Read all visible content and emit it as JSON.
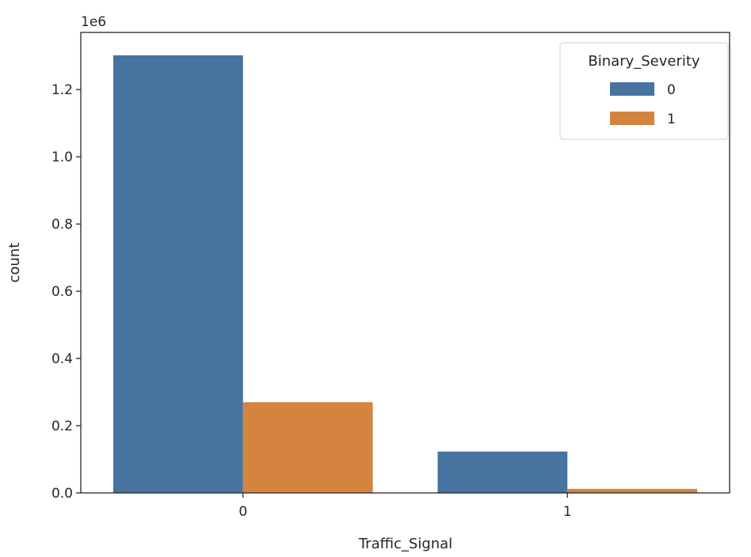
{
  "chart_data": {
    "type": "bar",
    "categories": [
      "0",
      "1"
    ],
    "series": [
      {
        "name": "0",
        "values": [
          1302000,
          123000
        ],
        "color": "#4673a0"
      },
      {
        "name": "1",
        "values": [
          270000,
          12000
        ],
        "color": "#d4843e"
      }
    ],
    "xlabel": "Traffic_Signal",
    "ylabel": "count",
    "ylim": [
      0,
      1370000
    ],
    "y_ticks": [
      0,
      200000,
      400000,
      600000,
      800000,
      1000000,
      1200000
    ],
    "y_tick_labels": [
      "0.0",
      "0.2",
      "0.4",
      "0.6",
      "0.8",
      "1.0",
      "1.2"
    ],
    "y_offset_label": "1e6",
    "grid": false,
    "legend": {
      "title": "Binary_Severity",
      "position": "top-right",
      "entries": [
        "0",
        "1"
      ]
    }
  }
}
